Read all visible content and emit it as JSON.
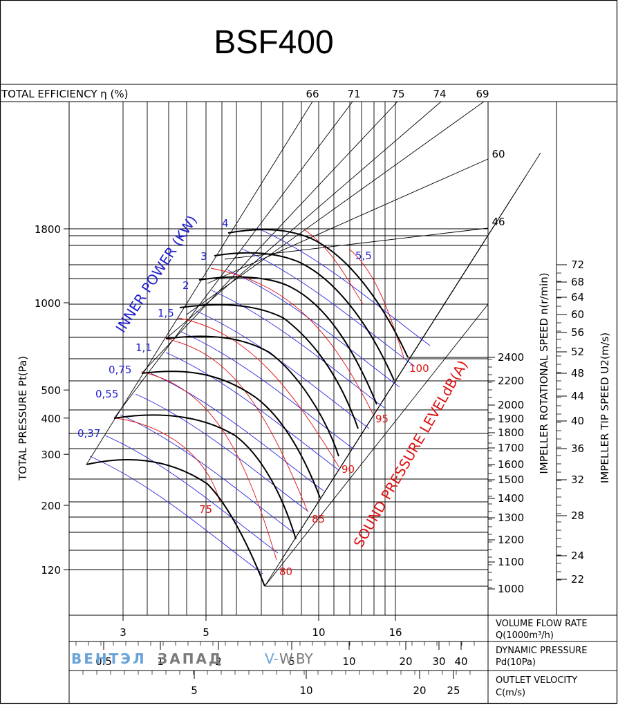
{
  "title": "BSF400",
  "chart_data": {
    "type": "line",
    "title": "BSF400",
    "efficiency_label": "TOTAL EFFICIENCY η (%)",
    "efficiency_ticks": [
      "66",
      "71",
      "75",
      "74",
      "69"
    ],
    "efficiency_extra": [
      "60",
      "46"
    ],
    "y_label": "TOTAL PRESSURE Pt(Pa)",
    "y_scale": "log",
    "y_ticks": [
      {
        "label": "1800",
        "value": 1800
      },
      {
        "label": "1000",
        "value": 1000
      },
      {
        "label": "500",
        "value": 500
      },
      {
        "label": "400",
        "value": 400
      },
      {
        "label": "300",
        "value": 300
      },
      {
        "label": "200",
        "value": 200
      },
      {
        "label": "120",
        "value": 120
      }
    ],
    "x_axes": [
      {
        "label": "VOLUME FLOW RATE",
        "unit": "Q(1000m³/h)",
        "ticks": [
          "3",
          "5",
          "10",
          "16"
        ]
      },
      {
        "label": "DYNAMIC PRESSURE",
        "unit": "Pd(10Pa)",
        "ticks": [
          "0.5",
          "1",
          "2",
          "5",
          "10",
          "20",
          "30",
          "40"
        ]
      },
      {
        "label": "OUTLET VELOCITY",
        "unit": "C(m/s)",
        "ticks": [
          "5",
          "10",
          "20",
          "25"
        ]
      }
    ],
    "power_label": "INNER POWER (KW)",
    "power_values": [
      "0,37",
      "0,55",
      "0,75",
      "1,1",
      "1,5",
      "2",
      "3",
      "4",
      "5,5"
    ],
    "sound_label": "SOUND PRESSURE LEVELdB(A)",
    "sound_values": [
      "75",
      "80",
      "85",
      "90",
      "95",
      "100"
    ],
    "speed_label": "IMPELLER ROTATIONAL SPEED n(r/min)",
    "speed_values": [
      "2400",
      "2200",
      "2000",
      "1900",
      "1800",
      "1700",
      "1600",
      "1500",
      "1400",
      "1300",
      "1200",
      "1100",
      "1000"
    ],
    "tip_label": "IMPELLER TIP SPEED U2(m/s)",
    "tip_values": [
      "72",
      "68",
      "64",
      "60",
      "56",
      "52",
      "48",
      "44",
      "40",
      "36",
      "32",
      "28",
      "24",
      "22"
    ]
  },
  "watermark": {
    "part1": "ВЕНТЭЛ",
    "part2": "ЗАПАД",
    "part3": "V-",
    "part4": "W.BY"
  },
  "colors": {
    "blue": "#1f1fd0",
    "red": "#e01010",
    "watermark_blue": "#6aa3d8",
    "watermark_gray": "#7a7a7a"
  }
}
